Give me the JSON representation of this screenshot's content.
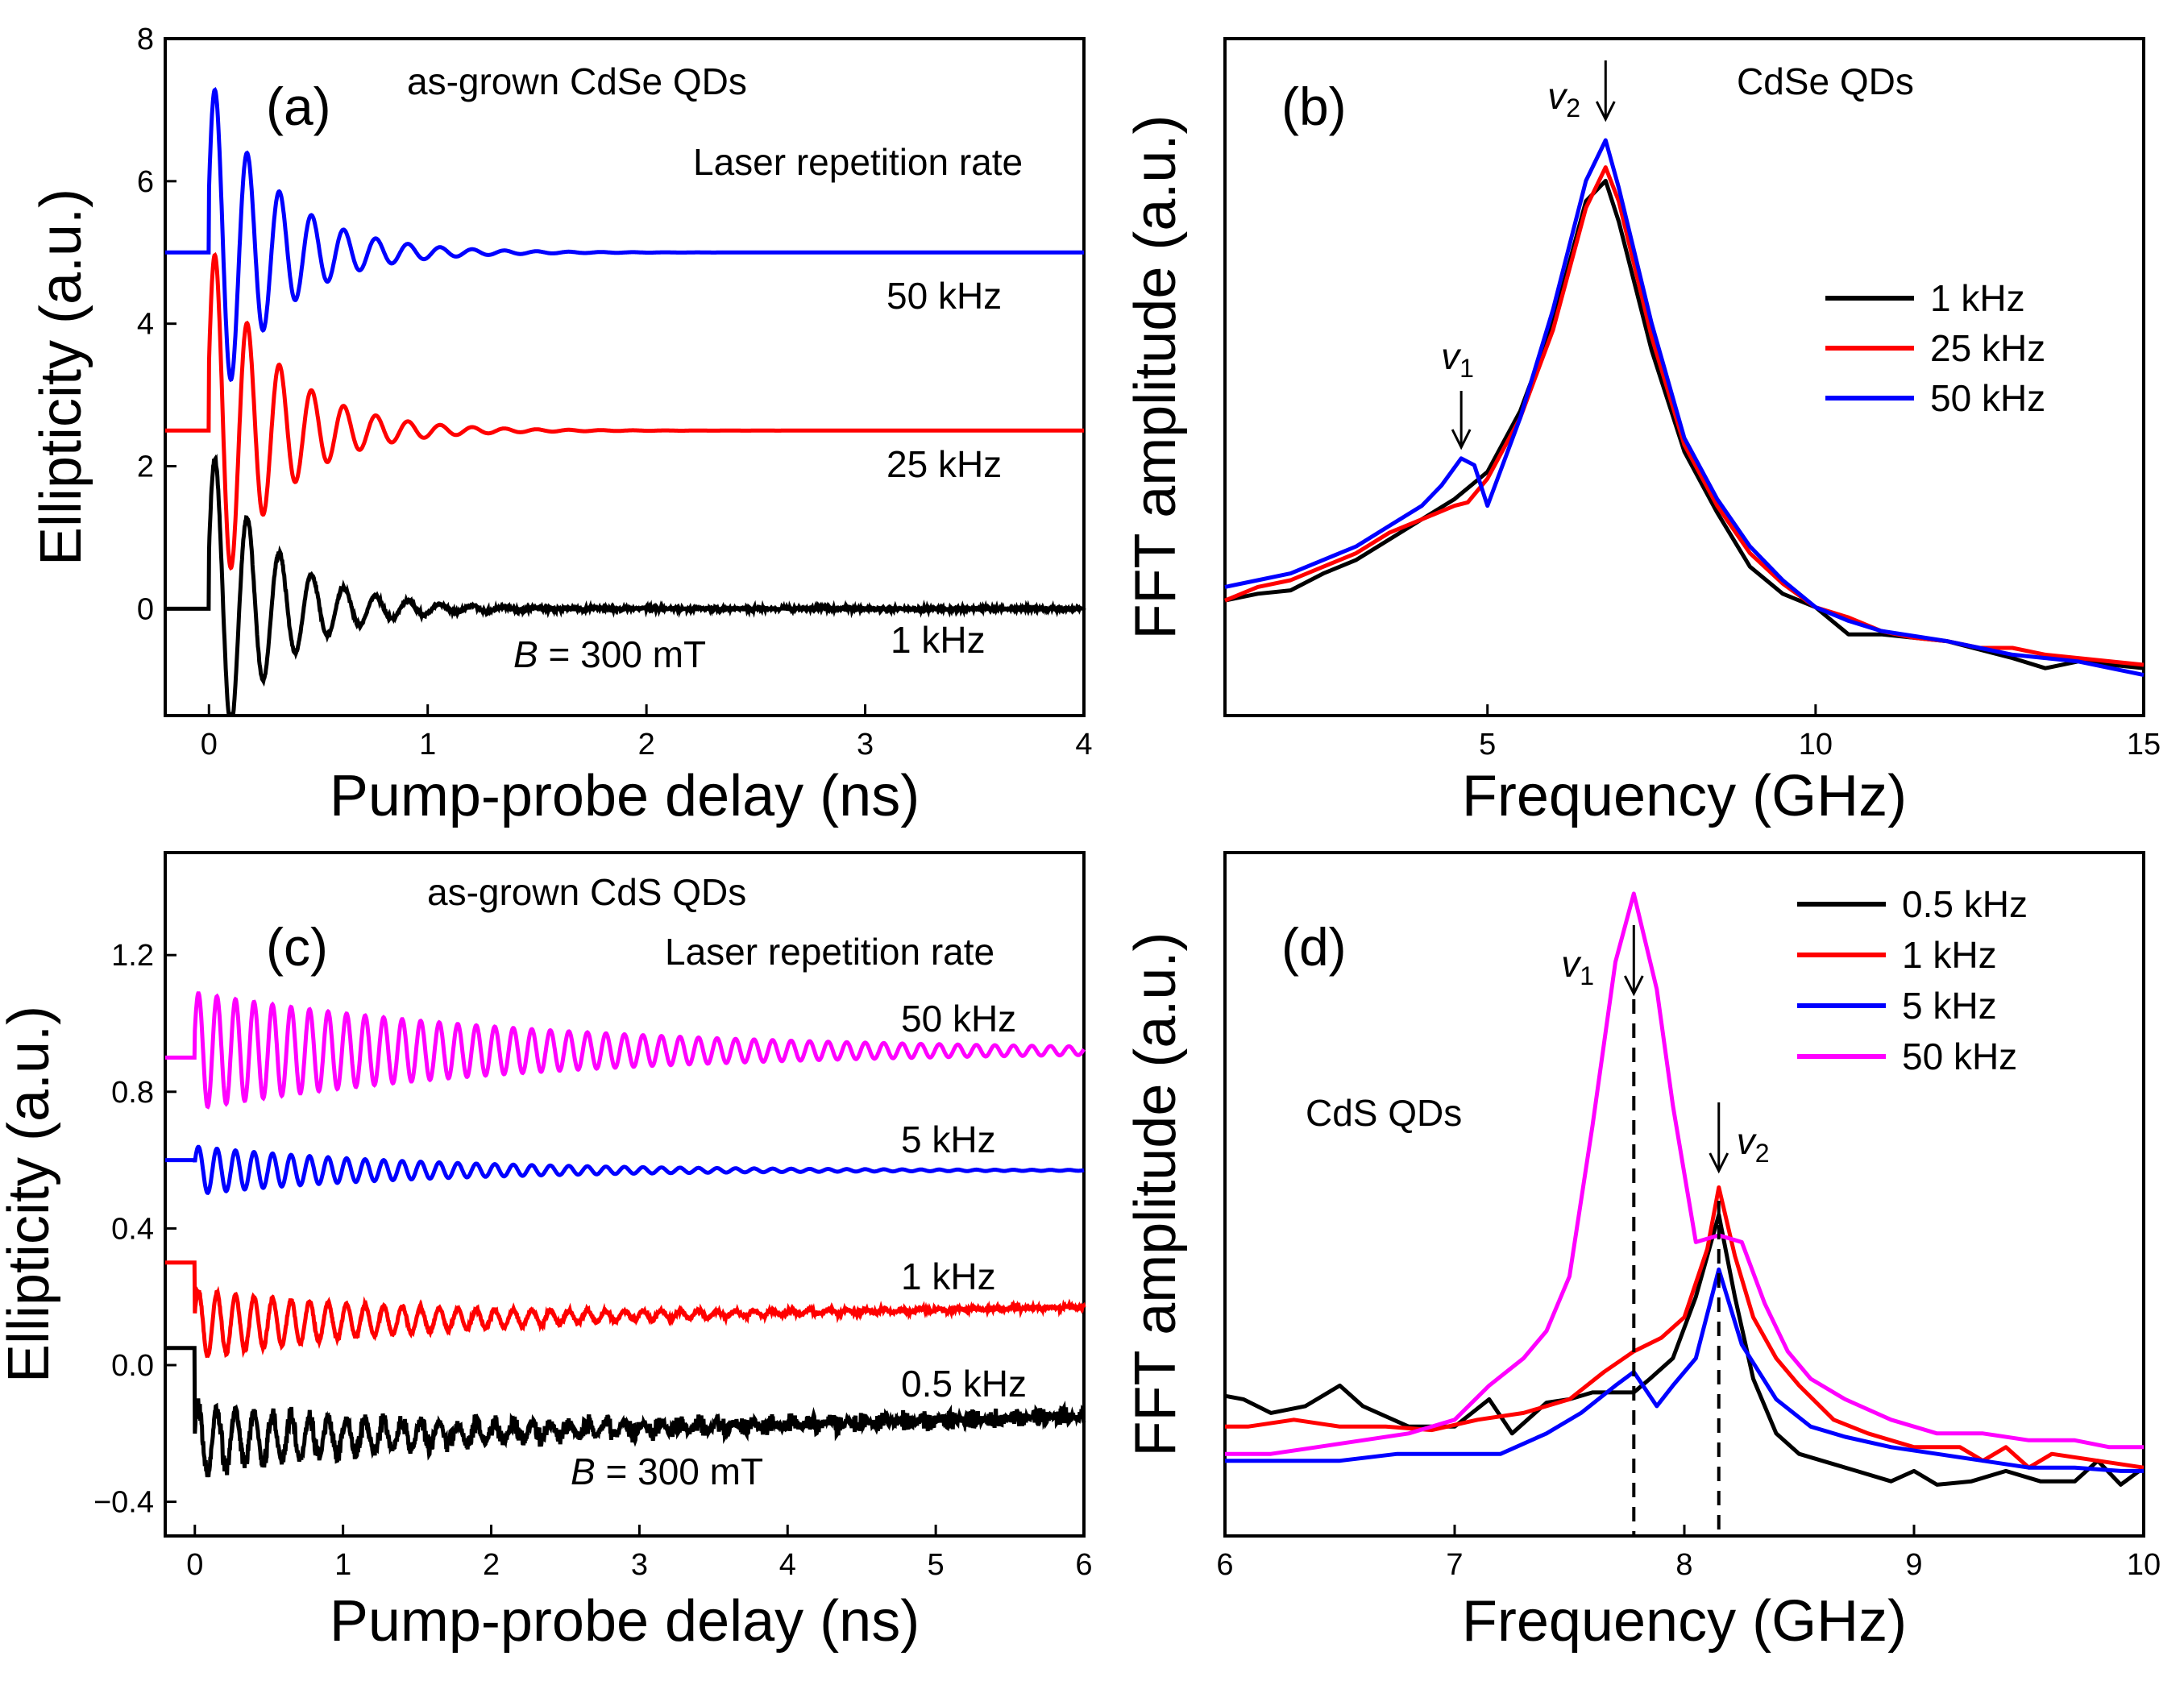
{
  "colors": {
    "black": "#000000",
    "red": "#ff0000",
    "blue": "#0000ff",
    "magenta": "#ff00ff"
  },
  "chart_data": [
    {
      "id": "a",
      "type": "line",
      "panel_label": "(a)",
      "title": "as-grown CdSe QDs",
      "subtitle": "Laser repetition rate",
      "xlabel": "Pump-probe delay (ns)",
      "ylabel": "Ellipticity (a.u.)",
      "xlim": [
        -0.2,
        4
      ],
      "ylim": [
        -1.5,
        8
      ],
      "xticks": [
        0,
        1,
        2,
        3,
        4
      ],
      "yticks": [
        0,
        2,
        4,
        6,
        8
      ],
      "annotation": {
        "field_prefix": "B",
        "field_suffix": " = 300 mT"
      },
      "series": [
        {
          "name": "50 kHz",
          "color": "#0000ff",
          "offset": 5.0,
          "pre": 5.0,
          "amp": 2.5,
          "freq": 6.8,
          "tau": 0.3,
          "noise": 0.0,
          "drift": 0.0
        },
        {
          "name": "25 kHz",
          "color": "#ff0000",
          "offset": 2.5,
          "pre": 2.5,
          "amp": 2.7,
          "freq": 6.8,
          "tau": 0.3,
          "noise": 0.0,
          "drift": 0.0
        },
        {
          "name": "1 kHz",
          "color": "#000000",
          "offset": 0.0,
          "pre": 0.0,
          "amp": 2.3,
          "freq": 6.8,
          "tau": 0.3,
          "noise": 0.02,
          "drift": 0.0
        }
      ]
    },
    {
      "id": "b",
      "type": "line",
      "panel_label": "(b)",
      "title": "CdSe QDs",
      "xlabel": "Frequency (GHz)",
      "ylabel": "FFT amplitude (a.u.)",
      "xlim": [
        1,
        15
      ],
      "ylim": [
        0,
        100
      ],
      "xticks": [
        5,
        10,
        15
      ],
      "peaks": [
        {
          "label": "v",
          "sub": "1",
          "x": 4.6
        },
        {
          "label": "v",
          "sub": "2",
          "x": 6.8
        }
      ],
      "legend": [
        "1 kHz",
        "25 kHz",
        "50 kHz"
      ],
      "series": [
        {
          "name": "1 kHz",
          "color": "#000000",
          "x": [
            1,
            1.5,
            2,
            2.5,
            3,
            3.5,
            4,
            4.5,
            5,
            5.5,
            6,
            6.5,
            6.8,
            7,
            7.5,
            8,
            8.5,
            9,
            9.5,
            10,
            10.5,
            11,
            12,
            13,
            13.5,
            14,
            15
          ],
          "y": [
            17,
            18,
            18.5,
            21,
            23,
            26,
            29,
            32,
            36,
            45,
            58,
            76,
            79,
            73,
            54,
            39,
            30,
            22,
            18,
            16,
            12,
            12,
            11,
            8.5,
            7,
            8,
            7
          ]
        },
        {
          "name": "25 kHz",
          "color": "#ff0000",
          "x": [
            1,
            1.5,
            2,
            2.5,
            3,
            3.5,
            4,
            4.5,
            4.7,
            5,
            5.5,
            6,
            6.5,
            6.8,
            7,
            7.5,
            8,
            8.5,
            9,
            9.5,
            10,
            10.5,
            11,
            11.5,
            12,
            12.5,
            13,
            13.5,
            14,
            15
          ],
          "y": [
            17,
            19,
            20,
            22,
            24,
            27,
            29,
            31,
            31.5,
            35,
            44,
            57,
            75,
            81,
            76,
            56,
            40,
            31,
            24,
            19.5,
            16,
            14.5,
            12.5,
            11.5,
            11,
            10,
            10,
            9,
            8.5,
            7.5
          ]
        },
        {
          "name": "50 kHz",
          "color": "#0000ff",
          "x": [
            1,
            1.5,
            2,
            2.5,
            3,
            3.5,
            4,
            4.3,
            4.6,
            4.8,
            5,
            5.5,
            6,
            6.5,
            6.8,
            7,
            7.5,
            8,
            8.5,
            9,
            9.5,
            10,
            10.5,
            11,
            12,
            12.5,
            13,
            13.5,
            14,
            15
          ],
          "y": [
            19,
            20,
            21,
            23,
            25,
            28,
            31,
            34,
            38,
            37,
            31,
            44,
            60,
            79,
            85,
            78,
            58,
            41,
            32,
            25,
            20,
            16,
            14,
            12.5,
            11,
            10,
            9,
            8.5,
            8,
            6
          ]
        }
      ]
    },
    {
      "id": "c",
      "type": "line",
      "panel_label": "(c)",
      "title": "as-grown CdS QDs",
      "subtitle": "Laser repetition rate",
      "xlabel": "Pump-probe delay (ns)",
      "ylabel": "Ellipticity (a.u.)",
      "xlim": [
        -0.2,
        6
      ],
      "ylim": [
        -0.5,
        1.5
      ],
      "xticks": [
        0,
        1,
        2,
        3,
        4,
        5,
        6
      ],
      "yticks": [
        -0.4,
        0.0,
        0.4,
        0.8,
        1.2
      ],
      "ytick_labels": [
        "−0.4",
        "0.0",
        "0.4",
        "0.8",
        "1.2"
      ],
      "annotation": {
        "field_prefix": "B",
        "field_suffix": " = 300 mT"
      },
      "series": [
        {
          "name": "50 kHz",
          "color": "#ff00ff",
          "offset": 0.92,
          "pre": 0.9,
          "amp": 0.17,
          "freq": 8.0,
          "tau": 2.3,
          "noise": 0.0,
          "drift": 0.0
        },
        {
          "name": "5 kHz",
          "color": "#0000ff",
          "offset": 0.57,
          "pre": 0.6,
          "amp": 0.07,
          "freq": 8.0,
          "tau": 1.5,
          "noise": 0.0,
          "drift": 0.0
        },
        {
          "name": "1 kHz",
          "color": "#ff0000",
          "offset": 0.12,
          "pre": 0.3,
          "amp": 0.1,
          "freq": 8.0,
          "tau": 1.5,
          "noise": 0.004,
          "drift": 0.05
        },
        {
          "name": "0.5 kHz",
          "color": "#000000",
          "offset": -0.22,
          "pre": 0.05,
          "amp": 0.1,
          "freq": 8.0,
          "tau": 1.5,
          "noise": 0.02,
          "drift": 0.07
        }
      ]
    },
    {
      "id": "d",
      "type": "line",
      "panel_label": "(d)",
      "title": "CdS QDs",
      "xlabel": "Frequency (GHz)",
      "ylabel": "FFT amplitude (a.u.)",
      "xlim": [
        6,
        10
      ],
      "ylim": [
        0,
        100
      ],
      "xticks": [
        6,
        7,
        8,
        9,
        10
      ],
      "peaks": [
        {
          "label": "v",
          "sub": "1",
          "x": 7.78
        },
        {
          "label": "v",
          "sub": "2",
          "x": 8.15
        }
      ],
      "legend": [
        "0.5 kHz",
        "1 kHz",
        "5 kHz",
        "50 kHz"
      ],
      "series": [
        {
          "name": "0.5 kHz",
          "color": "#000000",
          "x": [
            6,
            6.08,
            6.2,
            6.35,
            6.5,
            6.6,
            6.8,
            7.0,
            7.15,
            7.25,
            7.4,
            7.5,
            7.6,
            7.7,
            7.78,
            7.85,
            7.95,
            8.05,
            8.15,
            8.22,
            8.3,
            8.4,
            8.5,
            8.6,
            8.75,
            8.9,
            9.0,
            9.1,
            9.25,
            9.4,
            9.55,
            9.7,
            9.8,
            9.9,
            10.0
          ],
          "y": [
            20.5,
            20,
            18,
            19,
            22,
            19,
            16,
            16,
            20,
            15,
            19.5,
            20,
            21,
            21,
            21,
            23,
            26,
            35,
            47,
            35,
            23,
            15,
            12,
            11,
            9.5,
            8,
            9.5,
            7.5,
            8,
            9.5,
            8,
            8,
            11,
            7.5,
            10
          ]
        },
        {
          "name": "1 kHz",
          "color": "#ff0000",
          "x": [
            6,
            6.1,
            6.3,
            6.5,
            6.7,
            6.9,
            7.1,
            7.3,
            7.5,
            7.65,
            7.78,
            7.9,
            8.0,
            8.1,
            8.15,
            8.22,
            8.3,
            8.4,
            8.5,
            8.65,
            8.8,
            9.0,
            9.2,
            9.3,
            9.4,
            9.5,
            9.6,
            9.8,
            10.0
          ],
          "y": [
            16,
            16,
            17,
            16,
            16,
            15.5,
            17,
            18,
            20,
            24,
            27,
            29,
            32,
            42,
            51,
            41,
            32,
            26,
            22,
            17,
            15,
            13,
            13,
            11,
            13,
            10,
            12,
            11,
            10
          ]
        },
        {
          "name": "5 kHz",
          "color": "#0000ff",
          "x": [
            6,
            6.25,
            6.5,
            6.75,
            7.0,
            7.2,
            7.4,
            7.55,
            7.7,
            7.78,
            7.88,
            7.95,
            8.05,
            8.15,
            8.25,
            8.4,
            8.55,
            8.7,
            8.9,
            9.1,
            9.3,
            9.5,
            9.7,
            9.9,
            10.0
          ],
          "y": [
            11,
            11,
            11,
            12,
            12,
            12,
            15,
            18,
            22,
            24,
            19,
            22,
            26,
            39,
            28,
            20,
            16,
            14.5,
            13,
            12,
            11,
            10,
            10,
            9.5,
            9.5
          ]
        },
        {
          "name": "50 kHz",
          "color": "#ff00ff",
          "x": [
            6,
            6.2,
            6.4,
            6.6,
            6.8,
            7.0,
            7.15,
            7.3,
            7.4,
            7.5,
            7.6,
            7.7,
            7.78,
            7.88,
            7.95,
            8.05,
            8.15,
            8.25,
            8.35,
            8.45,
            8.55,
            8.7,
            8.9,
            9.1,
            9.3,
            9.5,
            9.7,
            9.85,
            10.0
          ],
          "y": [
            12,
            12,
            13,
            14,
            15,
            17,
            22,
            26,
            30,
            38,
            60,
            84,
            94,
            80,
            63,
            43,
            44,
            43,
            34,
            27,
            23,
            20,
            17,
            15,
            15,
            14,
            14,
            13,
            13
          ]
        }
      ]
    }
  ]
}
